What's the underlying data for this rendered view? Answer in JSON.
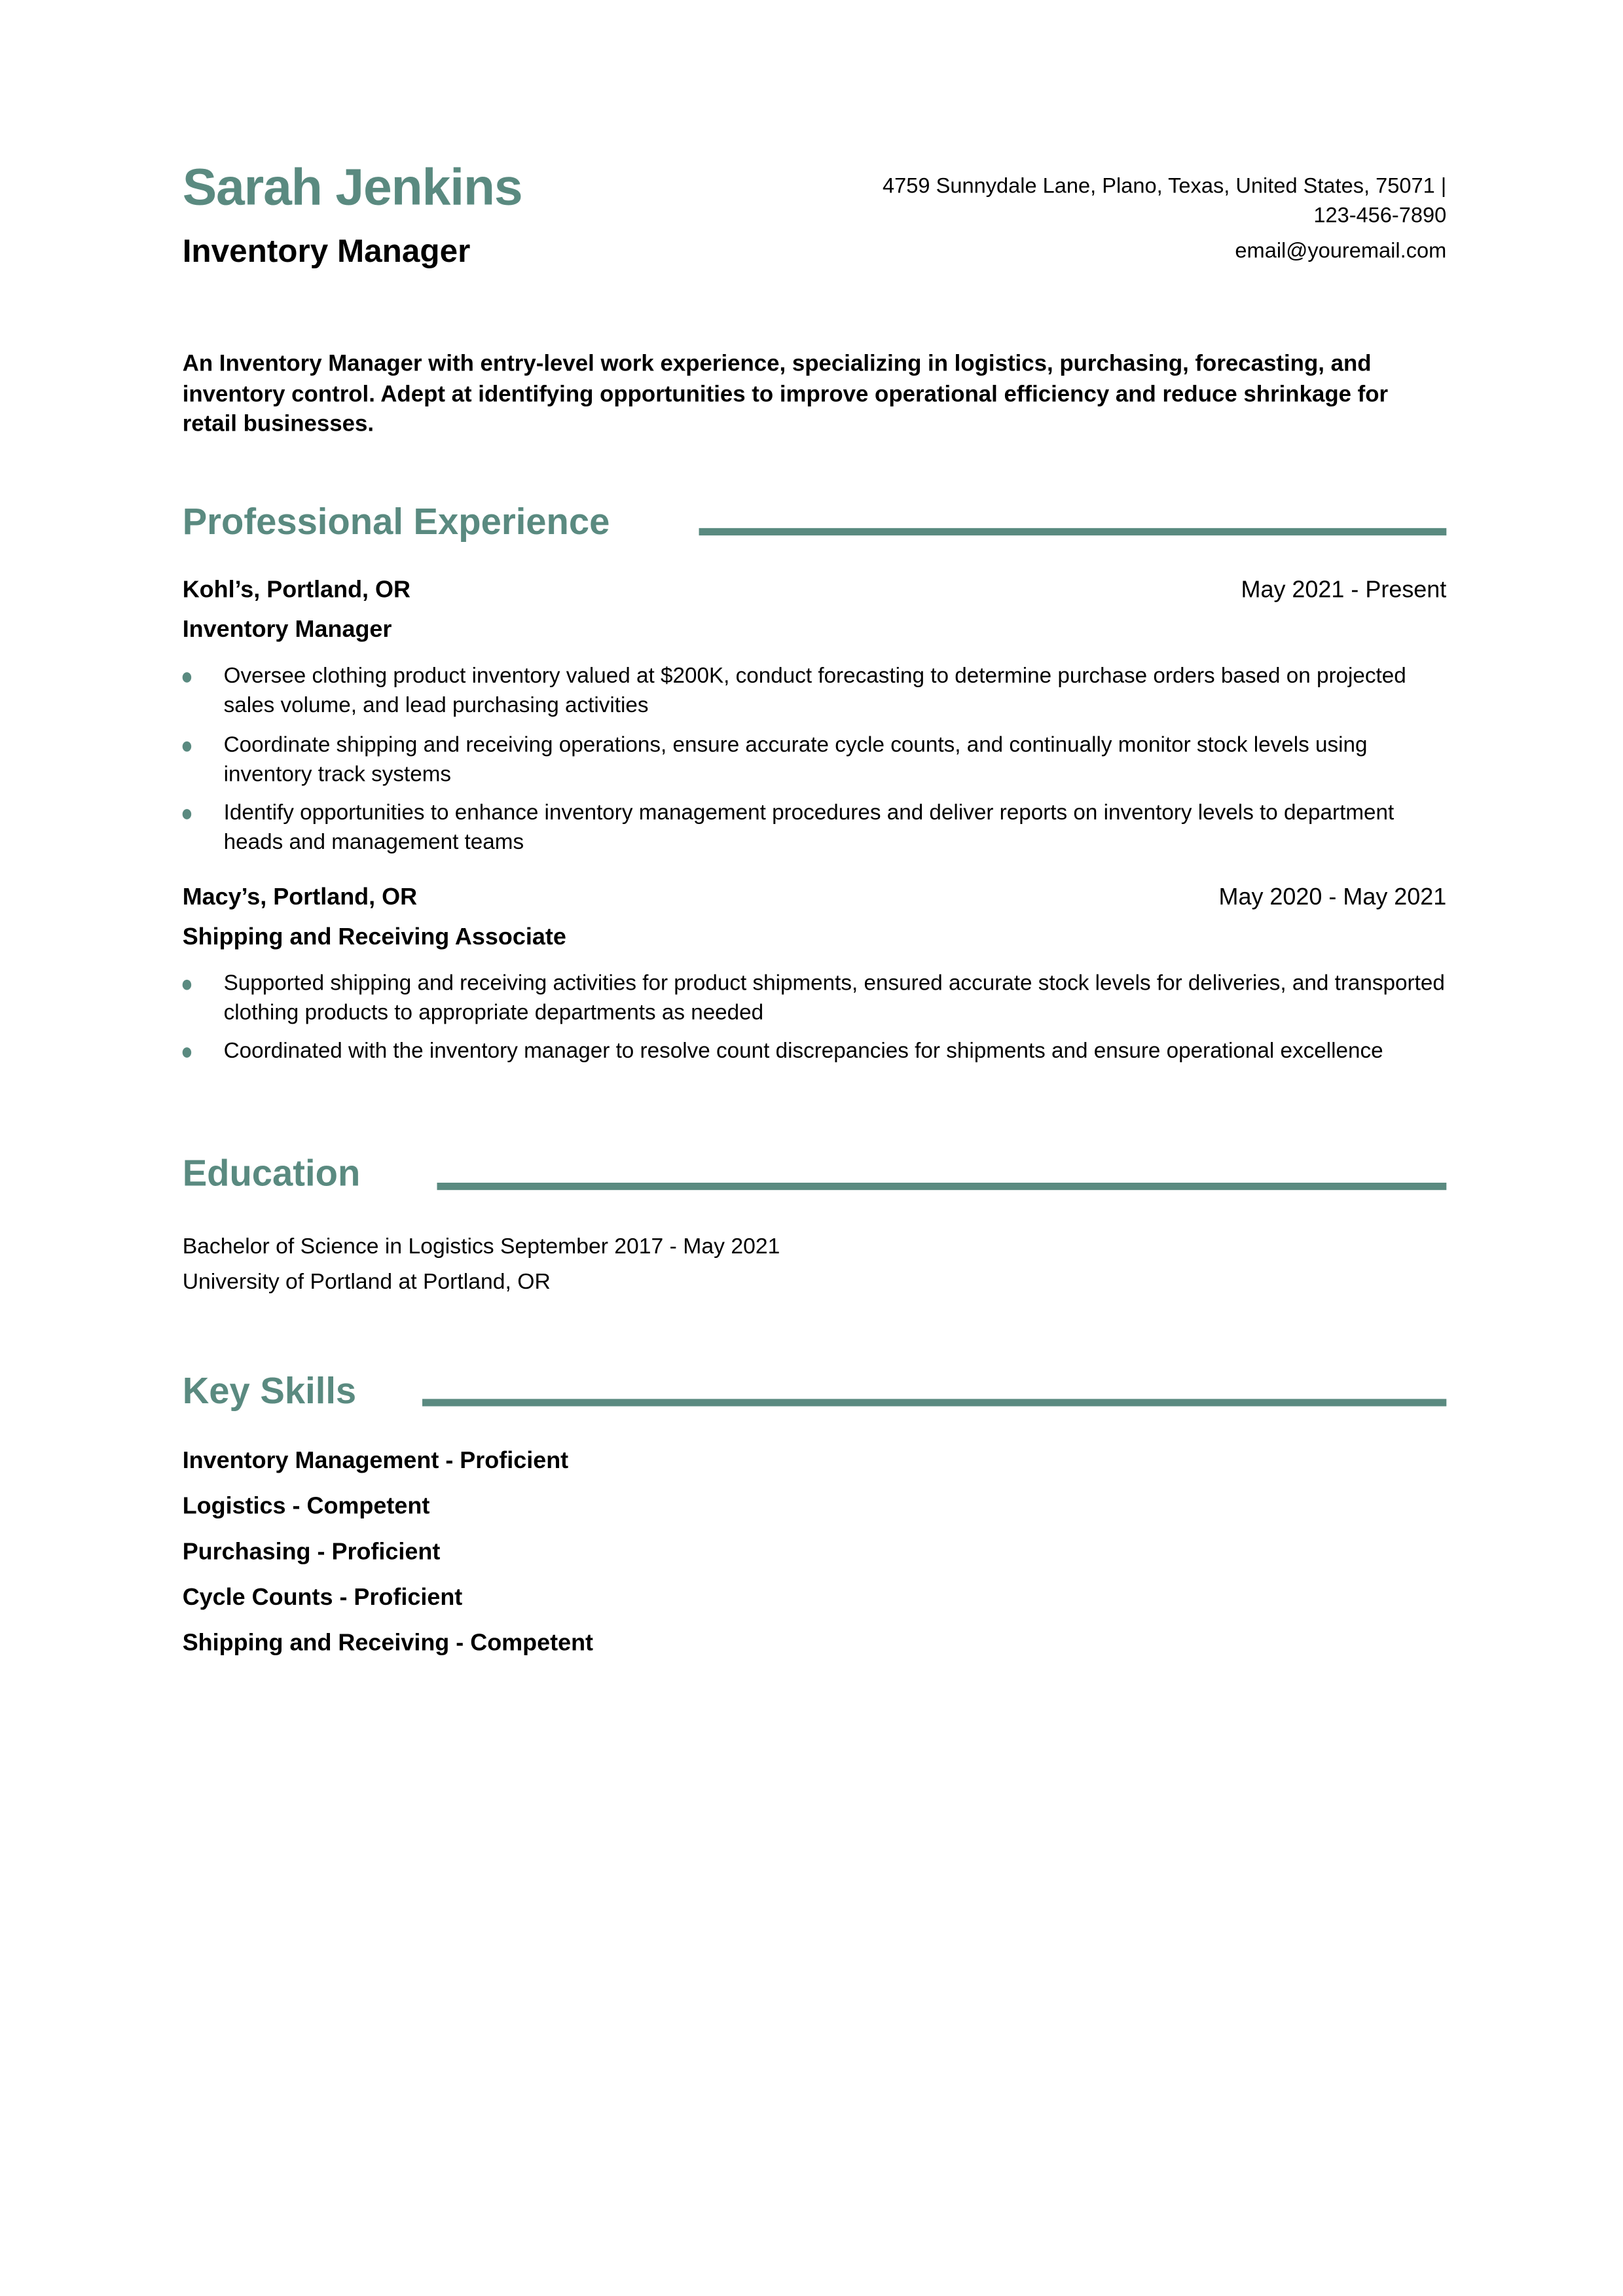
{
  "header": {
    "name": "Sarah Jenkins",
    "title": "Inventory Manager",
    "address": "4759 Sunnydale Lane, Plano, Texas, United States, 75071 |",
    "phone": "123-456-7890",
    "email": "email@youremail.com"
  },
  "summary": "An Inventory Manager with entry-level work experience, specializing in  logistics, purchasing, forecasting, and inventory control. Adept at  identifying opportunities to improve operational efficiency and reduce  shrinkage for retail businesses.",
  "accent_color": "#5a8a80",
  "experience": {
    "heading": "Professional Experience",
    "jobs": [
      {
        "company": "Kohl’s, Portland, OR",
        "dates": "May 2021 - Present",
        "role": "Inventory Manager",
        "bullets": [
          "Oversee clothing product inventory valued at $200K, conduct  forecasting to determine purchase orders based on projected sales  volume, and lead purchasing activities",
          "Coordinate shipping and receiving operations, ensure accurate cycle  counts, and continually monitor stock levels using inventory track  systems",
          "Identify opportunities to enhance inventory management procedures  and deliver reports on inventory levels to department heads and  management teams"
        ]
      },
      {
        "company": "Macy’s, Portland, OR",
        "dates": "May 2020 - May 2021",
        "role": "Shipping and Receiving Associate",
        "bullets": [
          "Supported shipping and receiving activities for product shipments,  ensured accurate stock levels for deliveries, and transported clothing  products to appropriate departments as needed",
          "Coordinated with the inventory manager to resolve count discrepancies for shipments and ensure operational excellence"
        ]
      }
    ]
  },
  "education": {
    "heading": "Education",
    "degree_line": "Bachelor of Science in Logistics  September 2017 - May 2021",
    "school": "University of Portland at Portland, OR"
  },
  "skills": {
    "heading": "Key Skills",
    "items": [
      "Inventory Management - Proficient",
      "Logistics - Competent",
      "Purchasing - Proficient",
      "Cycle Counts - Proficient",
      "Shipping and Receiving - Competent"
    ]
  }
}
